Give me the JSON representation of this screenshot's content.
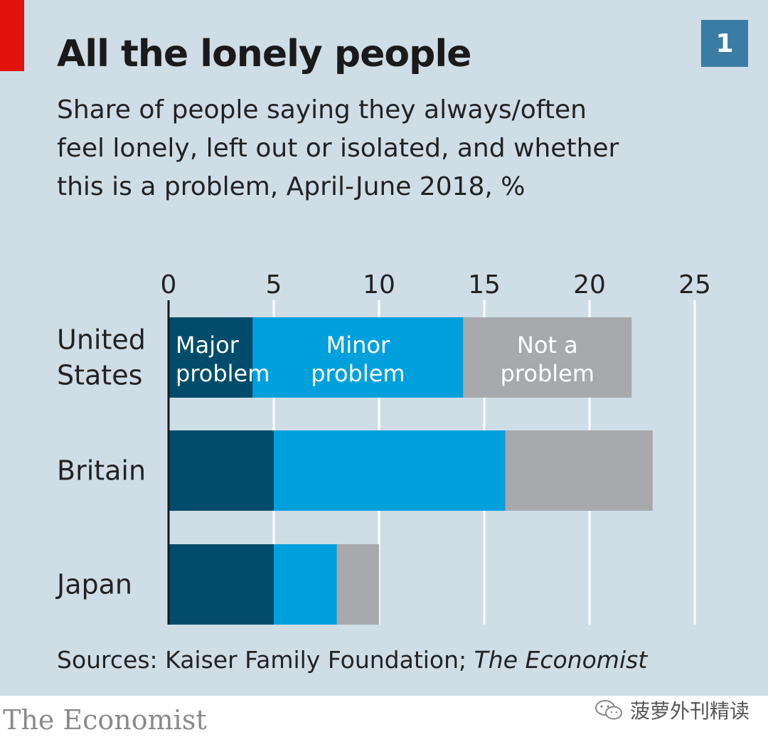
{
  "badge": "1",
  "source_prefix": "Sources: Kaiser Family Foundation; ",
  "source_italic": "The Economist",
  "footer_brand": "The Economist",
  "watermark_text": "菠萝外刊精读",
  "colors": {
    "background": "#cfdde6",
    "red_tag": "#e3120b",
    "badge": "#3a7ca5",
    "major": "#004c6a",
    "minor": "#00a0dd",
    "not": "#a7a9ac",
    "grid": "#ffffff",
    "axis": "#1a1a1a"
  },
  "chart_data": {
    "type": "bar",
    "orientation": "horizontal",
    "stacked": true,
    "title": "All the lonely people",
    "subtitle_lines": [
      "Share of people saying they always/often",
      "feel lonely, left out or isolated, and whether",
      "this is a problem, April-June 2018, %"
    ],
    "categories": [
      [
        "United",
        "States"
      ],
      [
        "Britain"
      ],
      [
        "Japan"
      ]
    ],
    "series": [
      {
        "name": "Major problem",
        "label_lines": [
          "Major",
          "problem"
        ],
        "values": [
          4,
          5,
          5
        ]
      },
      {
        "name": "Minor problem",
        "label_lines": [
          "Minor",
          "problem"
        ],
        "values": [
          10,
          11,
          3
        ]
      },
      {
        "name": "Not a problem",
        "label_lines": [
          "Not a",
          "problem"
        ],
        "values": [
          8,
          7,
          2
        ]
      }
    ],
    "xlim": [
      0,
      25
    ],
    "xticks": [
      0,
      5,
      10,
      15,
      20,
      25
    ],
    "grid": true,
    "axis_position": "top",
    "legend": "inline in first bar"
  }
}
